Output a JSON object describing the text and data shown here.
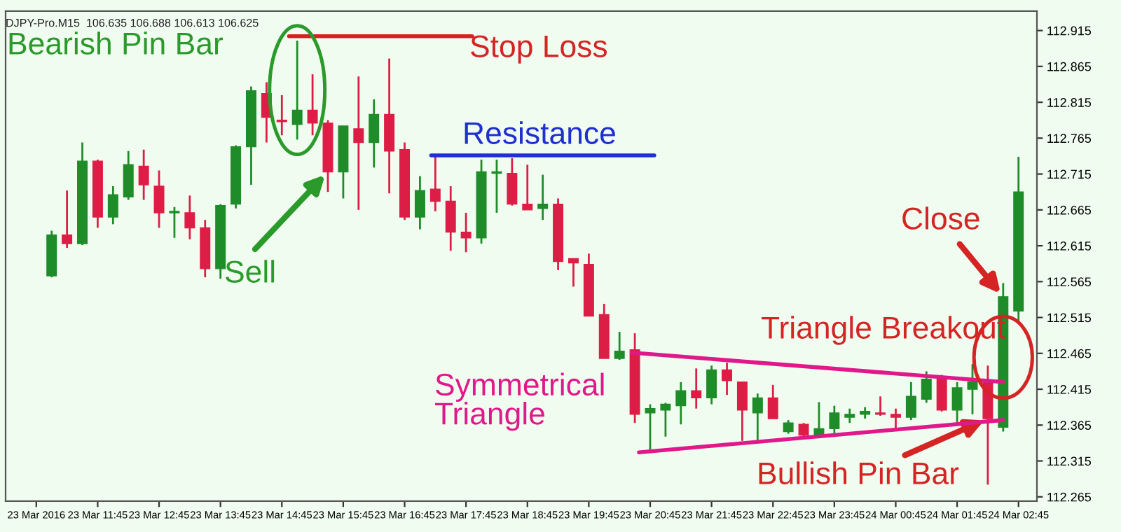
{
  "chart_data": {
    "type": "candlestick",
    "title": "DJPY-Pro.M15  106.635 106.688 106.613 106.625",
    "x": [
      "2016-03-23T11:00",
      "2016-03-23T11:15",
      "2016-03-23T11:30",
      "2016-03-23T11:45",
      "2016-03-23T12:00",
      "2016-03-23T12:15",
      "2016-03-23T12:30",
      "2016-03-23T12:45",
      "2016-03-23T13:00",
      "2016-03-23T13:15",
      "2016-03-23T13:30",
      "2016-03-23T13:45",
      "2016-03-23T14:00",
      "2016-03-23T14:15",
      "2016-03-23T14:30",
      "2016-03-23T14:45",
      "2016-03-23T15:00",
      "2016-03-23T15:15",
      "2016-03-23T15:30",
      "2016-03-23T15:45",
      "2016-03-23T16:00",
      "2016-03-23T16:15",
      "2016-03-23T16:30",
      "2016-03-23T16:45",
      "2016-03-23T17:00",
      "2016-03-23T17:15",
      "2016-03-23T17:30",
      "2016-03-23T17:45",
      "2016-03-23T18:00",
      "2016-03-23T18:15",
      "2016-03-23T18:30",
      "2016-03-23T18:45",
      "2016-03-23T19:00",
      "2016-03-23T19:15",
      "2016-03-23T19:30",
      "2016-03-23T19:45",
      "2016-03-23T20:00",
      "2016-03-23T20:15",
      "2016-03-23T20:30",
      "2016-03-23T20:45",
      "2016-03-23T21:00",
      "2016-03-23T21:15",
      "2016-03-23T21:30",
      "2016-03-23T21:45",
      "2016-03-23T22:00",
      "2016-03-23T22:15",
      "2016-03-23T22:30",
      "2016-03-23T22:45",
      "2016-03-23T23:00",
      "2016-03-23T23:15",
      "2016-03-23T23:30",
      "2016-03-23T23:45",
      "2016-03-24T00:00",
      "2016-03-24T00:15",
      "2016-03-24T00:30",
      "2016-03-24T00:45",
      "2016-03-24T01:00",
      "2016-03-24T01:15",
      "2016-03-24T01:30",
      "2016-03-24T01:45",
      "2016-03-24T02:00",
      "2016-03-24T02:15",
      "2016-03-24T02:30",
      "2016-03-24T02:45"
    ],
    "ohlc": [
      [
        112.573,
        112.636,
        112.571,
        112.63
      ],
      [
        112.63,
        112.692,
        112.612,
        112.618
      ],
      [
        112.618,
        112.759,
        112.616,
        112.733
      ],
      [
        112.733,
        112.735,
        112.64,
        112.655
      ],
      [
        112.655,
        112.698,
        112.645,
        112.686
      ],
      [
        112.683,
        112.747,
        112.679,
        112.728
      ],
      [
        112.726,
        112.749,
        112.679,
        112.7
      ],
      [
        112.698,
        112.72,
        112.64,
        112.661
      ],
      [
        112.661,
        112.669,
        112.626,
        112.663
      ],
      [
        112.661,
        112.685,
        112.624,
        112.64
      ],
      [
        112.64,
        112.651,
        112.571,
        112.583
      ],
      [
        112.583,
        112.673,
        112.569,
        112.671
      ],
      [
        112.673,
        112.755,
        112.667,
        112.753
      ],
      [
        112.753,
        112.837,
        112.7,
        112.831
      ],
      [
        112.827,
        112.843,
        112.759,
        112.794
      ],
      [
        112.79,
        112.825,
        112.769,
        112.788
      ],
      [
        112.784,
        112.901,
        112.763,
        112.804
      ],
      [
        112.804,
        112.854,
        112.769,
        112.786
      ],
      [
        112.786,
        112.79,
        112.69,
        112.718
      ],
      [
        112.718,
        112.782,
        112.681,
        112.782
      ],
      [
        112.778,
        112.851,
        112.665,
        112.759
      ],
      [
        112.759,
        112.819,
        112.724,
        112.798
      ],
      [
        112.798,
        112.876,
        112.688,
        112.747
      ],
      [
        112.749,
        112.759,
        112.651,
        112.655
      ],
      [
        112.655,
        112.712,
        112.638,
        112.692
      ],
      [
        112.694,
        112.741,
        112.663,
        112.677
      ],
      [
        112.677,
        112.698,
        112.608,
        112.634
      ],
      [
        112.634,
        112.661,
        112.606,
        112.626
      ],
      [
        112.626,
        112.735,
        112.618,
        112.718
      ],
      [
        112.716,
        112.735,
        112.661,
        112.718
      ],
      [
        112.716,
        112.737,
        112.671,
        112.673
      ],
      [
        112.673,
        112.728,
        112.665,
        112.665
      ],
      [
        112.667,
        112.714,
        112.651,
        112.673
      ],
      [
        112.673,
        112.681,
        112.581,
        112.593
      ],
      [
        112.597,
        112.597,
        112.558,
        112.591
      ],
      [
        112.589,
        112.604,
        112.517,
        112.517
      ],
      [
        112.519,
        112.534,
        112.458,
        112.458
      ],
      [
        112.458,
        112.495,
        112.456,
        112.468
      ],
      [
        112.47,
        112.493,
        112.368,
        112.38
      ],
      [
        112.382,
        112.394,
        112.331,
        112.388
      ],
      [
        112.386,
        112.396,
        112.349,
        112.394
      ],
      [
        112.392,
        112.425,
        112.366,
        112.413
      ],
      [
        112.413,
        112.444,
        112.388,
        112.403
      ],
      [
        112.403,
        112.448,
        112.394,
        112.442
      ],
      [
        112.442,
        112.452,
        112.407,
        112.427
      ],
      [
        112.425,
        112.425,
        112.343,
        112.386
      ],
      [
        112.382,
        112.409,
        112.343,
        112.403
      ],
      [
        112.403,
        112.421,
        112.374,
        112.374
      ],
      [
        112.356,
        112.372,
        112.353,
        112.368
      ],
      [
        112.366,
        112.368,
        112.347,
        112.351
      ],
      [
        112.351,
        112.397,
        112.347,
        112.36
      ],
      [
        112.36,
        112.392,
        112.351,
        112.382
      ],
      [
        112.376,
        112.388,
        112.368,
        112.38
      ],
      [
        112.38,
        112.39,
        112.374,
        112.384
      ],
      [
        112.382,
        112.405,
        112.378,
        112.38
      ],
      [
        112.38,
        112.388,
        112.36,
        112.376
      ],
      [
        112.376,
        112.425,
        112.372,
        112.405
      ],
      [
        112.401,
        112.44,
        112.396,
        112.429
      ],
      [
        112.429,
        112.435,
        112.384,
        112.386
      ],
      [
        112.386,
        112.425,
        112.366,
        112.417
      ],
      [
        112.415,
        112.45,
        112.38,
        112.425
      ],
      [
        112.425,
        112.448,
        112.282,
        112.374
      ],
      [
        112.362,
        112.563,
        112.356,
        112.544
      ],
      [
        112.524,
        112.739,
        112.509,
        112.69
      ]
    ],
    "colors": [
      "#1e8c28",
      "#dc1e46",
      "#1e8c28",
      "#dc1e46",
      "#1e8c28",
      "#1e8c28",
      "#dc1e46",
      "#dc1e46",
      "#1e8c28",
      "#dc1e46",
      "#dc1e46",
      "#1e8c28",
      "#1e8c28",
      "#1e8c28",
      "#dc1e46",
      "#dc1e46",
      "#1e8c28",
      "#dc1e46",
      "#dc1e46",
      "#1e8c28",
      "#dc1e46",
      "#1e8c28",
      "#dc1e46",
      "#dc1e46",
      "#1e8c28",
      "#dc1e46",
      "#dc1e46",
      "#dc1e46",
      "#1e8c28",
      "#1e8c28",
      "#dc1e46",
      "#dc1e46",
      "#1e8c28",
      "#dc1e46",
      "#dc1e46",
      "#dc1e46",
      "#dc1e46",
      "#1e8c28",
      "#dc1e46",
      "#1e8c28",
      "#1e8c28",
      "#1e8c28",
      "#dc1e46",
      "#1e8c28",
      "#dc1e46",
      "#dc1e46",
      "#1e8c28",
      "#dc1e46",
      "#1e8c28",
      "#dc1e46",
      "#1e8c28",
      "#1e8c28",
      "#1e8c28",
      "#1e8c28",
      "#dc1e46",
      "#dc1e46",
      "#1e8c28",
      "#1e8c28",
      "#dc1e46",
      "#1e8c28",
      "#1e8c28",
      "#dc1e46",
      "#1e8c28",
      "#1e8c28"
    ],
    "series": [
      {
        "type": "line",
        "color": "#d62020",
        "x": [
          "2016-03-23T14:52",
          "2016-03-23T17:51"
        ],
        "values": [
          112.907,
          112.907
        ]
      },
      {
        "type": "line",
        "color": "#1f2fd0",
        "x": [
          "2016-03-23T17:11",
          "2016-03-23T20:49"
        ],
        "values": [
          112.741,
          112.741
        ]
      },
      {
        "type": "line",
        "color": "#e0198a",
        "x": [
          "2016-03-23T20:27",
          "2016-03-24T02:30"
        ],
        "values": [
          112.466,
          112.425
        ]
      },
      {
        "type": "line",
        "color": "#e0198a",
        "x": [
          "2016-03-23T20:34",
          "2016-03-24T02:30"
        ],
        "values": [
          112.327,
          112.372
        ]
      }
    ],
    "annotations": [
      "Bearish Pin Bar",
      "Stop Loss",
      "Resistance",
      "Sell",
      {
        "text": "Close",
        "x": "2016-03-24T02:30",
        "y": 112.544
      },
      "Triangle Breakout",
      "Symmetrical\nTriangle",
      {
        "text": "Bullish Pin Bar",
        "x": "2016-03-24T02:15",
        "y": 112.374
      }
    ],
    "xlim": [
      "2016-03-23T10:15",
      "2016-03-24T03:03"
    ],
    "xticks": [
      {
        "value": "2016-03-23T10:45",
        "label": "23 Mar 2016"
      },
      {
        "value": "2016-03-23T11:45",
        "label": "23 Mar 11:45"
      },
      {
        "value": "2016-03-23T12:45",
        "label": "23 Mar 12:45"
      },
      {
        "value": "2016-03-23T13:45",
        "label": "23 Mar 13:45"
      },
      {
        "value": "2016-03-23T14:45",
        "label": "23 Mar 14:45"
      },
      {
        "value": "2016-03-23T15:45",
        "label": "23 Mar 15:45"
      },
      {
        "value": "2016-03-23T16:45",
        "label": "23 Mar 16:45"
      },
      {
        "value": "2016-03-23T17:45",
        "label": "23 Mar 17:45"
      },
      {
        "value": "2016-03-23T18:45",
        "label": "23 Mar 18:45"
      },
      {
        "value": "2016-03-23T19:45",
        "label": "23 Mar 19:45"
      },
      {
        "value": "2016-03-23T20:45",
        "label": "23 Mar 20:45"
      },
      {
        "value": "2016-03-23T21:45",
        "label": "23 Mar 21:45"
      },
      {
        "value": "2016-03-23T22:45",
        "label": "23 Mar 22:45"
      },
      {
        "value": "2016-03-23T23:45",
        "label": "23 Mar 23:45"
      },
      {
        "value": "2016-03-24T00:45",
        "label": "24 Mar 00:45"
      },
      {
        "value": "2016-03-24T01:45",
        "label": "24 Mar 01:45"
      },
      {
        "value": "2016-03-24T02:45",
        "label": "24 Mar 02:45"
      }
    ],
    "ylim": [
      112.259,
      112.942
    ],
    "yticks": [
      112.265,
      112.315,
      112.365,
      112.415,
      112.465,
      112.515,
      112.565,
      112.615,
      112.665,
      112.715,
      112.765,
      112.815,
      112.865,
      112.915
    ],
    "grid": false,
    "legend": false
  }
}
